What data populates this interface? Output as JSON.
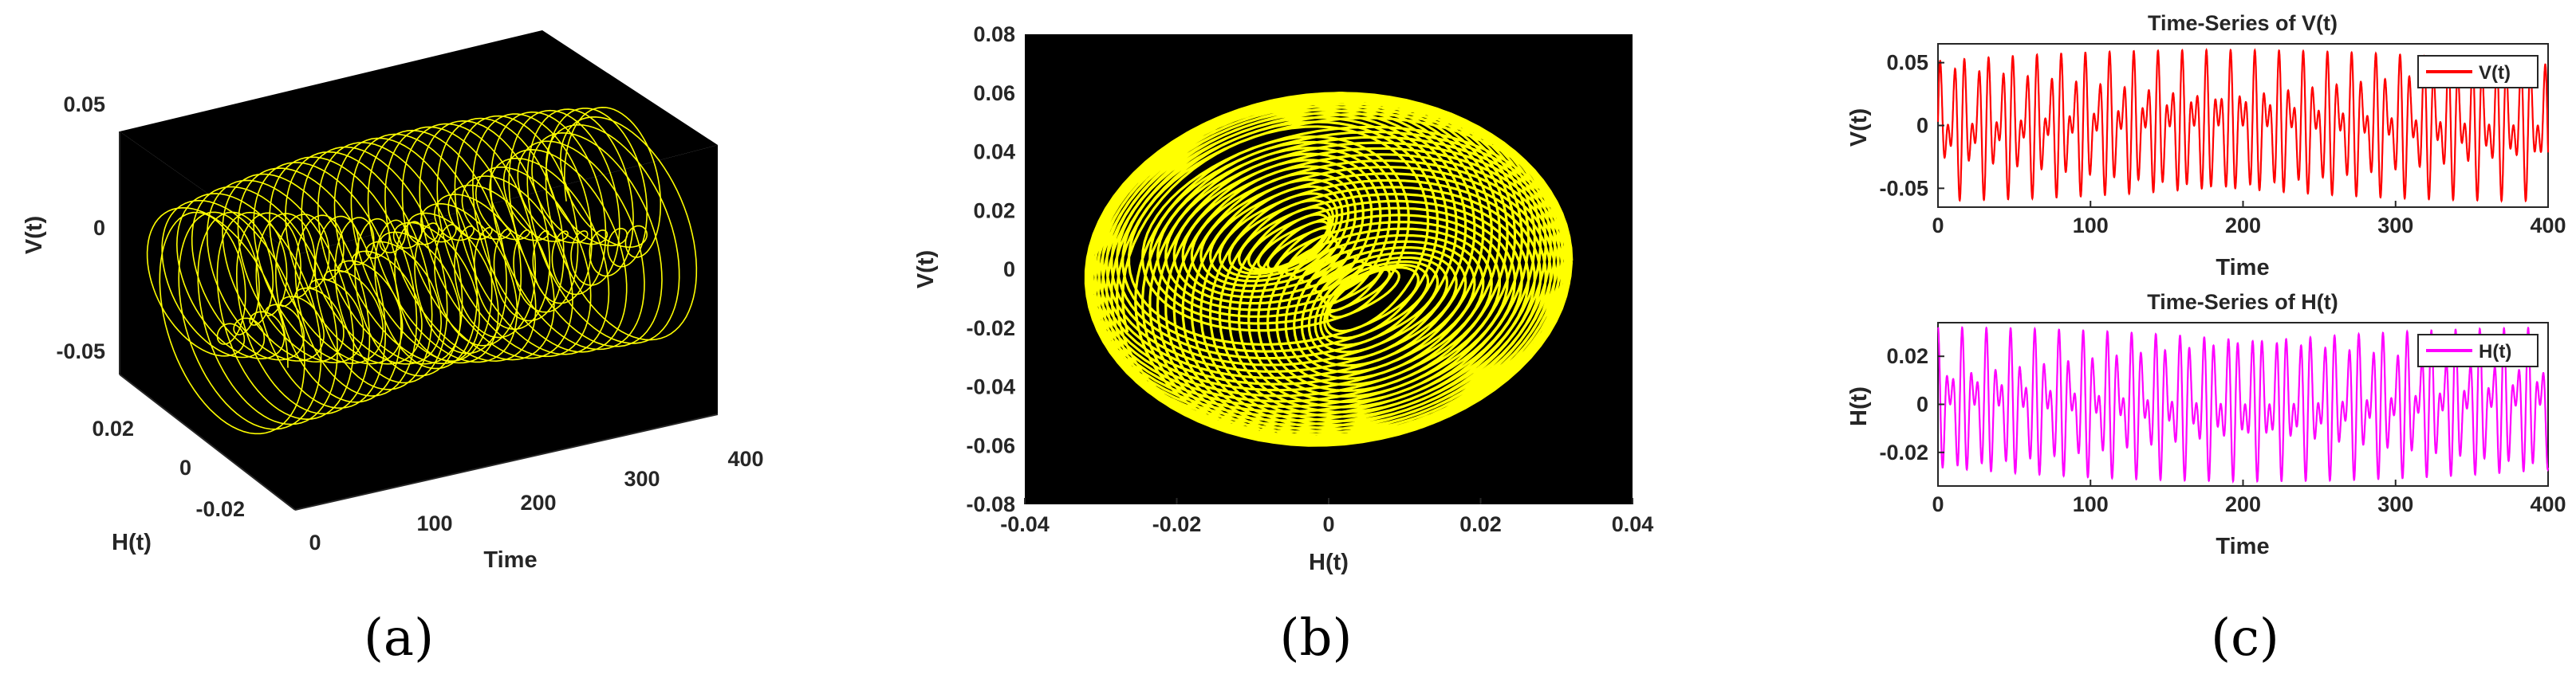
{
  "colors": {
    "plot_background": "#000000",
    "trajectory": "#ffff00",
    "v_series": "#ff0000",
    "h_series": "#ff00ff",
    "axis_text": "#262626"
  },
  "captions": {
    "a": "(a)",
    "b": "(b)",
    "c": "(c)"
  },
  "chart_data": [
    {
      "id": "a",
      "type": "line",
      "projection": "3d",
      "title": "",
      "xlabel": "Time",
      "ylabel": "H(t)",
      "zlabel": "V(t)",
      "x_ticks": [
        "0",
        "100",
        "200",
        "300",
        "400"
      ],
      "y_ticks": [
        "0.02",
        "0",
        "-0.02"
      ],
      "z_ticks": [
        "0.05",
        "0",
        "-0.05"
      ],
      "xlim": [
        0,
        400
      ],
      "ylim": [
        -0.03,
        0.03
      ],
      "zlim": [
        -0.06,
        0.06
      ],
      "series": [
        {
          "color": "#ffff00",
          "description_of_shape": "helical trajectory winding along the time axis"
        }
      ]
    },
    {
      "id": "b",
      "type": "line",
      "title": "",
      "xlabel": "H(t)",
      "ylabel": "V(t)",
      "x_ticks": [
        "-0.04",
        "-0.02",
        "0",
        "0.02",
        "0.04"
      ],
      "y_ticks": [
        "0.08",
        "0.06",
        "0.04",
        "0.02",
        "0",
        "-0.02",
        "-0.04",
        "-0.06",
        "-0.08"
      ],
      "xlim": [
        -0.04,
        0.04
      ],
      "ylim": [
        -0.08,
        0.08
      ],
      "amplitude": {
        "H": 0.032,
        "V": 0.06
      }
    },
    {
      "id": "c1",
      "type": "line",
      "title": "Time-Series of  V(t)",
      "xlabel": "Time",
      "ylabel": "V(t)",
      "x_ticks": [
        "0",
        "100",
        "200",
        "300",
        "400"
      ],
      "y_ticks": [
        "0.05",
        "0",
        "-0.05"
      ],
      "xlim": [
        0,
        400
      ],
      "ylim": [
        -0.065,
        0.065
      ],
      "legend": {
        "label": "V(t)",
        "position": "top-right"
      },
      "amplitude": 0.06
    },
    {
      "id": "c2",
      "type": "line",
      "title": "Time-Series of H(t)",
      "xlabel": "Time",
      "ylabel": "H(t)",
      "x_ticks": [
        "0",
        "100",
        "200",
        "300",
        "400"
      ],
      "y_ticks": [
        "0.02",
        "0",
        "-0.02"
      ],
      "xlim": [
        0,
        400
      ],
      "ylim": [
        -0.034,
        0.034
      ],
      "legend": {
        "label": "H(t)",
        "position": "top-right"
      },
      "amplitude": 0.032
    }
  ]
}
